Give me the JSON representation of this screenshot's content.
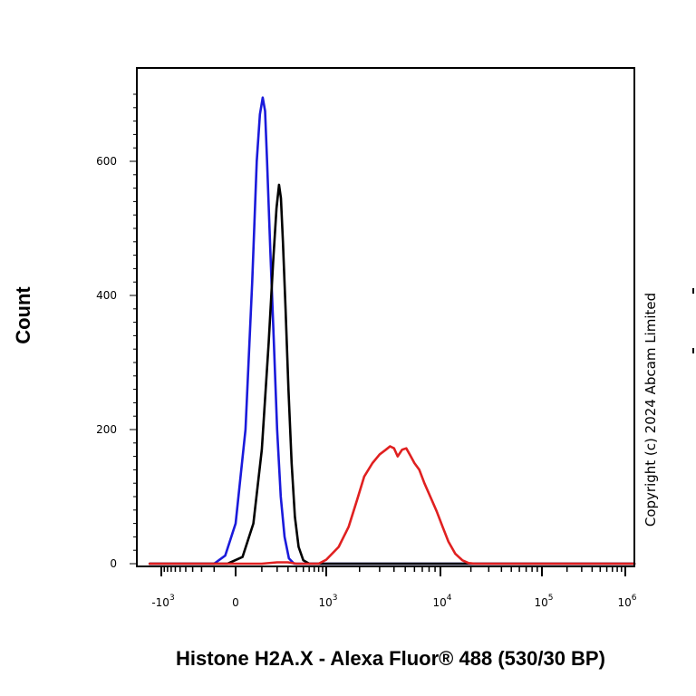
{
  "chart_data": {
    "type": "line",
    "title": "",
    "xlabel": "Histone H2A.X - Alexa Fluor® 488 (530/30 BP)",
    "ylabel": "Count",
    "x_scale": "biexponential",
    "ylim": [
      0,
      720
    ],
    "y_ticks": [
      {
        "value": 0,
        "label": "0"
      },
      {
        "value": 200,
        "label": "200"
      },
      {
        "value": 400,
        "label": "400"
      },
      {
        "value": 600,
        "label": "600"
      }
    ],
    "x_ticks": [
      {
        "value": -1000,
        "base": "-10",
        "exp": "3"
      },
      {
        "value": 0,
        "base": "0",
        "exp": ""
      },
      {
        "value": 1000,
        "base": "10",
        "exp": "3"
      },
      {
        "value": 10000,
        "base": "10",
        "exp": "4"
      },
      {
        "value": 100000,
        "base": "10",
        "exp": "5"
      },
      {
        "value": 1000000,
        "base": "10",
        "exp": "6"
      }
    ],
    "series": [
      {
        "color": "#1a1adb",
        "points": [
          [
            -1500,
            0
          ],
          [
            -100,
            0
          ],
          [
            -40,
            12
          ],
          [
            0,
            60
          ],
          [
            30,
            200
          ],
          [
            55,
            420
          ],
          [
            75,
            600
          ],
          [
            90,
            670
          ],
          [
            105,
            695
          ],
          [
            118,
            675
          ],
          [
            130,
            600
          ],
          [
            150,
            470
          ],
          [
            175,
            330
          ],
          [
            200,
            200
          ],
          [
            230,
            100
          ],
          [
            265,
            40
          ],
          [
            310,
            8
          ],
          [
            370,
            0
          ],
          [
            3000000,
            0
          ]
        ]
      },
      {
        "color": "#000000",
        "points": [
          [
            -1500,
            0
          ],
          [
            -30,
            0
          ],
          [
            20,
            10
          ],
          [
            60,
            60
          ],
          [
            100,
            170
          ],
          [
            140,
            330
          ],
          [
            170,
            450
          ],
          [
            195,
            530
          ],
          [
            215,
            565
          ],
          [
            232,
            545
          ],
          [
            250,
            480
          ],
          [
            275,
            380
          ],
          [
            305,
            260
          ],
          [
            340,
            150
          ],
          [
            380,
            70
          ],
          [
            430,
            25
          ],
          [
            500,
            5
          ],
          [
            600,
            0
          ],
          [
            3000000,
            0
          ]
        ]
      },
      {
        "color": "#e02020",
        "points": [
          [
            -1500,
            0
          ],
          [
            100,
            0
          ],
          [
            200,
            2
          ],
          [
            300,
            2
          ],
          [
            400,
            0
          ],
          [
            800,
            0
          ],
          [
            1000,
            6
          ],
          [
            1300,
            25
          ],
          [
            1600,
            55
          ],
          [
            1900,
            95
          ],
          [
            2200,
            130
          ],
          [
            2600,
            150
          ],
          [
            3000,
            163
          ],
          [
            3400,
            170
          ],
          [
            3700,
            175
          ],
          [
            4000,
            172
          ],
          [
            4300,
            160
          ],
          [
            4700,
            170
          ],
          [
            5100,
            172
          ],
          [
            5500,
            162
          ],
          [
            6000,
            150
          ],
          [
            6600,
            140
          ],
          [
            7300,
            120
          ],
          [
            8200,
            100
          ],
          [
            9300,
            78
          ],
          [
            10500,
            55
          ],
          [
            12000,
            33
          ],
          [
            14000,
            15
          ],
          [
            16500,
            5
          ],
          [
            19000,
            1
          ],
          [
            22000,
            0
          ],
          [
            3000000,
            0
          ]
        ]
      }
    ]
  },
  "copyright": "Copyright (c) 2024 Abcam Limited"
}
